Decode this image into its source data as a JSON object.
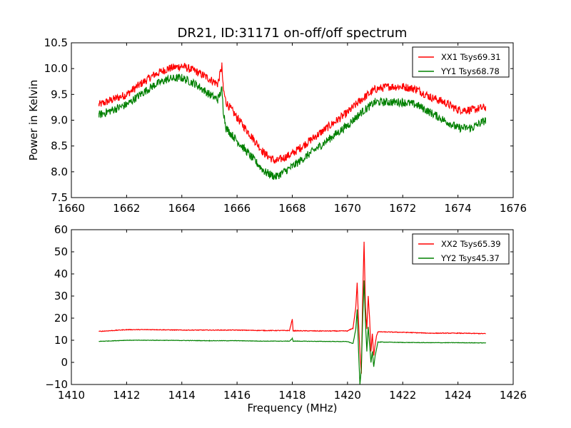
{
  "chart_data": [
    {
      "type": "line",
      "title": "DR21, ID:31171 on-off/off spectrum",
      "xlabel": "",
      "ylabel": "Power in Kelvin",
      "xlim": [
        1660,
        1676
      ],
      "ylim": [
        7.5,
        10.5
      ],
      "xticks": [
        1660,
        1662,
        1664,
        1666,
        1668,
        1670,
        1672,
        1674,
        1676
      ],
      "yticks": [
        7.5,
        8.0,
        8.5,
        9.0,
        9.5,
        10.0,
        10.5
      ],
      "xtick_labels": [
        "1660",
        "1662",
        "1664",
        "1666",
        "1668",
        "1670",
        "1672",
        "1674",
        "1676"
      ],
      "ytick_labels": [
        "7.5",
        "8.0",
        "8.5",
        "9.0",
        "9.5",
        "10.0",
        "10.5"
      ],
      "legend_position": "top-right",
      "series": [
        {
          "name": "XX1 Tsys69.31",
          "color": "#ff0000",
          "x": [
            1661.0,
            1661.5,
            1662.0,
            1662.5,
            1663.0,
            1663.5,
            1664.0,
            1664.5,
            1665.0,
            1665.3,
            1665.45,
            1665.5,
            1665.6,
            1666.0,
            1666.5,
            1667.0,
            1667.4,
            1668.0,
            1668.5,
            1669.0,
            1669.5,
            1670.0,
            1670.5,
            1671.0,
            1671.5,
            1672.0,
            1672.5,
            1673.0,
            1673.5,
            1674.0,
            1674.5,
            1675.0
          ],
          "y": [
            9.3,
            9.4,
            9.5,
            9.7,
            9.88,
            10.0,
            10.05,
            9.95,
            9.8,
            9.7,
            10.05,
            9.6,
            9.35,
            9.05,
            8.7,
            8.35,
            8.2,
            8.35,
            8.55,
            8.75,
            8.95,
            9.15,
            9.4,
            9.6,
            9.65,
            9.65,
            9.6,
            9.45,
            9.35,
            9.2,
            9.2,
            9.25
          ],
          "noise": 0.08
        },
        {
          "name": "YY1 Tsys68.78",
          "color": "#008000",
          "x": [
            1661.0,
            1661.5,
            1662.0,
            1662.5,
            1663.0,
            1663.5,
            1664.0,
            1664.5,
            1665.0,
            1665.3,
            1665.45,
            1665.5,
            1665.6,
            1666.0,
            1666.5,
            1667.0,
            1667.4,
            1668.0,
            1668.5,
            1669.0,
            1669.5,
            1670.0,
            1670.5,
            1671.0,
            1671.5,
            1672.0,
            1672.5,
            1673.0,
            1673.5,
            1674.0,
            1674.5,
            1675.0
          ],
          "y": [
            9.1,
            9.2,
            9.3,
            9.5,
            9.68,
            9.8,
            9.82,
            9.7,
            9.5,
            9.4,
            9.6,
            9.2,
            8.85,
            8.6,
            8.3,
            8.0,
            7.9,
            8.1,
            8.3,
            8.5,
            8.7,
            8.9,
            9.15,
            9.35,
            9.35,
            9.35,
            9.3,
            9.15,
            9.0,
            8.85,
            8.85,
            9.0
          ],
          "noise": 0.08
        }
      ]
    },
    {
      "type": "line",
      "title": "",
      "xlabel": "Frequency (MHz)",
      "ylabel": "",
      "xlim": [
        1410,
        1426
      ],
      "ylim": [
        -10,
        60
      ],
      "xticks": [
        1410,
        1412,
        1414,
        1416,
        1418,
        1420,
        1422,
        1424,
        1426
      ],
      "yticks": [
        -10,
        0,
        10,
        20,
        30,
        40,
        50,
        60
      ],
      "xtick_labels": [
        "1410",
        "1412",
        "1414",
        "1416",
        "1418",
        "1420",
        "1422",
        "1424",
        "1426"
      ],
      "ytick_labels": [
        "−10",
        "0",
        "10",
        "20",
        "30",
        "40",
        "50",
        "60"
      ],
      "legend_position": "top-right",
      "series": [
        {
          "name": "XX2 Tsys65.39",
          "color": "#ff0000",
          "x": [
            1411.0,
            1412.0,
            1413.0,
            1414.0,
            1415.0,
            1416.0,
            1417.0,
            1417.9,
            1418.0,
            1418.03,
            1418.1,
            1419.0,
            1420.0,
            1420.2,
            1420.3,
            1420.35,
            1420.4,
            1420.45,
            1420.5,
            1420.55,
            1420.6,
            1420.65,
            1420.7,
            1420.75,
            1420.8,
            1420.85,
            1420.9,
            1420.95,
            1421.0,
            1421.05,
            1421.1,
            1421.2,
            1422.0,
            1423.0,
            1424.0,
            1425.0
          ],
          "y": [
            14.0,
            14.8,
            14.8,
            14.6,
            14.6,
            14.6,
            14.4,
            14.4,
            19.5,
            14.2,
            14.3,
            14.2,
            14.2,
            15.5,
            25.0,
            36.0,
            18.0,
            5.0,
            -5.0,
            30.0,
            54.5,
            25.0,
            15.0,
            30.0,
            20.0,
            5.0,
            13.0,
            3.0,
            8.0,
            12.0,
            13.8,
            13.8,
            13.6,
            13.2,
            13.2,
            13.0
          ],
          "noise": 0.15
        },
        {
          "name": "YY2 Tsys45.37",
          "color": "#008000",
          "x": [
            1411.0,
            1412.0,
            1413.0,
            1414.0,
            1415.0,
            1416.0,
            1417.0,
            1417.9,
            1418.0,
            1418.03,
            1418.1,
            1419.0,
            1420.0,
            1420.2,
            1420.3,
            1420.35,
            1420.4,
            1420.45,
            1420.5,
            1420.55,
            1420.6,
            1420.65,
            1420.7,
            1420.75,
            1420.8,
            1420.85,
            1420.9,
            1420.95,
            1421.0,
            1421.05,
            1421.1,
            1421.2,
            1422.0,
            1423.0,
            1424.0,
            1425.0
          ],
          "y": [
            9.5,
            10.0,
            10.0,
            9.9,
            9.8,
            9.8,
            9.6,
            9.6,
            10.8,
            9.6,
            9.6,
            9.5,
            9.4,
            8.5,
            15.0,
            24.0,
            5.0,
            -10.0,
            -3.0,
            20.0,
            37.0,
            18.0,
            5.0,
            16.0,
            8.0,
            0.0,
            5.0,
            -2.0,
            3.0,
            6.0,
            9.2,
            9.2,
            9.0,
            8.9,
            8.9,
            8.8
          ],
          "noise": 0.1
        }
      ]
    }
  ]
}
